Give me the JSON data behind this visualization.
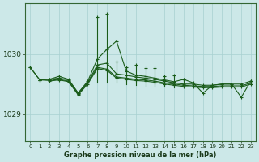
{
  "title": "Graphe pression niveau de la mer (hPa)",
  "bg_color": "#cce8e8",
  "grid_color": "#a8d0d0",
  "line_color": "#1a5c1a",
  "xlim": [
    -0.5,
    23.5
  ],
  "ylim": [
    1028.55,
    1030.85
  ],
  "yticks": [
    1029,
    1030
  ],
  "xtick_labels": [
    "0",
    "1",
    "2",
    "3",
    "4",
    "5",
    "6",
    "7",
    "8",
    "9",
    "10",
    "11",
    "12",
    "13",
    "14",
    "15",
    "16",
    "17",
    "18",
    "19",
    "20",
    "21",
    "22",
    "23"
  ],
  "line1": [
    1029.78,
    1029.57,
    1029.58,
    1029.6,
    1029.57,
    1029.35,
    1029.53,
    1029.82,
    1029.85,
    1029.67,
    1029.65,
    1029.62,
    1029.6,
    1029.58,
    1029.55,
    1029.52,
    1029.5,
    1029.5,
    1029.48,
    1029.48,
    1029.5,
    1029.5,
    1029.5,
    1029.55
  ],
  "line2": [
    null,
    1029.57,
    1029.56,
    1029.58,
    1029.55,
    1029.33,
    1029.52,
    1029.78,
    1029.75,
    1029.62,
    1029.6,
    1029.58,
    1029.57,
    1029.55,
    1029.52,
    1029.5,
    1029.48,
    1029.47,
    1029.46,
    1029.46,
    1029.47,
    1029.47,
    1029.47,
    1029.52
  ],
  "line3": [
    null,
    null,
    1029.55,
    1029.57,
    1029.54,
    1029.32,
    1029.5,
    1029.76,
    1029.73,
    1029.6,
    1029.58,
    1029.56,
    1029.55,
    1029.53,
    1029.5,
    1029.48,
    1029.46,
    1029.45,
    1029.44,
    1029.44,
    1029.45,
    1029.45,
    1029.45,
    1029.5
  ],
  "line4": [
    null,
    null,
    null,
    null,
    null,
    null,
    null,
    null,
    null,
    null,
    null,
    null,
    null,
    null,
    null,
    null,
    1029.46,
    1029.44,
    1029.43,
    1029.43,
    1029.44,
    1029.44,
    1029.44,
    1029.49
  ],
  "spikes_x": [
    7,
    8,
    9,
    10,
    11,
    12,
    13,
    14,
    15,
    16
  ],
  "spikes_top": [
    1030.62,
    1030.68,
    1029.88,
    1029.78,
    1029.82,
    1029.77,
    1029.77,
    1029.63,
    1029.65,
    1029.58
  ],
  "spikes_bot": [
    1029.52,
    1029.52,
    1029.52,
    1029.5,
    1029.48,
    1029.47,
    1029.46,
    1029.45,
    1029.44,
    1029.44
  ],
  "upper_line_x": [
    0,
    1,
    2,
    3,
    4,
    5,
    6,
    7,
    8,
    9
  ],
  "upper_line_y": [
    1029.78,
    1029.57,
    1029.58,
    1029.62,
    1029.58,
    1029.35,
    1029.55,
    1029.88,
    1030.05,
    1030.2
  ],
  "right_part_x": [
    16,
    17,
    18,
    19,
    20,
    21,
    22,
    23
  ],
  "right_part_y": [
    1029.6,
    1029.52,
    1029.35,
    1029.48,
    1029.5,
    1029.5,
    1029.28,
    1029.55
  ]
}
